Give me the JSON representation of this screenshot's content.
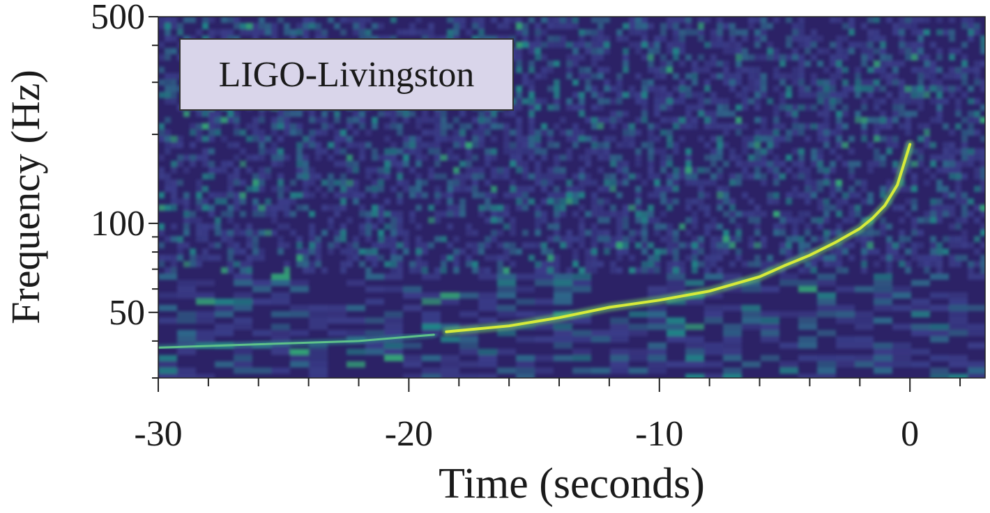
{
  "chart_data": {
    "type": "heatmap",
    "title": "",
    "annotation": "LIGO-Livingston",
    "xlabel": "Time (seconds)",
    "ylabel": "Frequency (Hz)",
    "xlim": [
      -30,
      3
    ],
    "ylim": [
      30,
      500
    ],
    "y_scale": "log",
    "x_major_ticks": [
      -30,
      -20,
      -10,
      0
    ],
    "x_tick_labels": [
      "-30",
      "-20",
      "-10",
      "0"
    ],
    "x_minor_step": 2,
    "y_labeled_ticks": [
      50,
      100,
      500
    ],
    "y_tick_labels": [
      "50",
      "100",
      "500"
    ],
    "y_minor_ticks": [
      40,
      60,
      70,
      80,
      90,
      200,
      300,
      400
    ],
    "colormap": [
      "#2b1f63",
      "#3b3f8c",
      "#2f6d8e",
      "#21908c",
      "#35b779",
      "#b5de2b",
      "#fde725"
    ],
    "chirp_track": [
      {
        "t": -18.5,
        "f": 43
      },
      {
        "t": -16,
        "f": 45
      },
      {
        "t": -14,
        "f": 48
      },
      {
        "t": -12,
        "f": 52
      },
      {
        "t": -10,
        "f": 55
      },
      {
        "t": -8,
        "f": 59
      },
      {
        "t": -6,
        "f": 66
      },
      {
        "t": -5,
        "f": 72
      },
      {
        "t": -4,
        "f": 78
      },
      {
        "t": -3,
        "f": 86
      },
      {
        "t": -2,
        "f": 96
      },
      {
        "t": -1.5,
        "f": 104
      },
      {
        "t": -1,
        "f": 115
      },
      {
        "t": -0.5,
        "f": 135
      },
      {
        "t": 0,
        "f": 185
      }
    ],
    "background_band": [
      {
        "t": -30,
        "f": 38
      },
      {
        "t": -26,
        "f": 39
      },
      {
        "t": -22,
        "f": 40
      },
      {
        "t": -19,
        "f": 42
      }
    ],
    "grid": false,
    "legend": "none"
  }
}
